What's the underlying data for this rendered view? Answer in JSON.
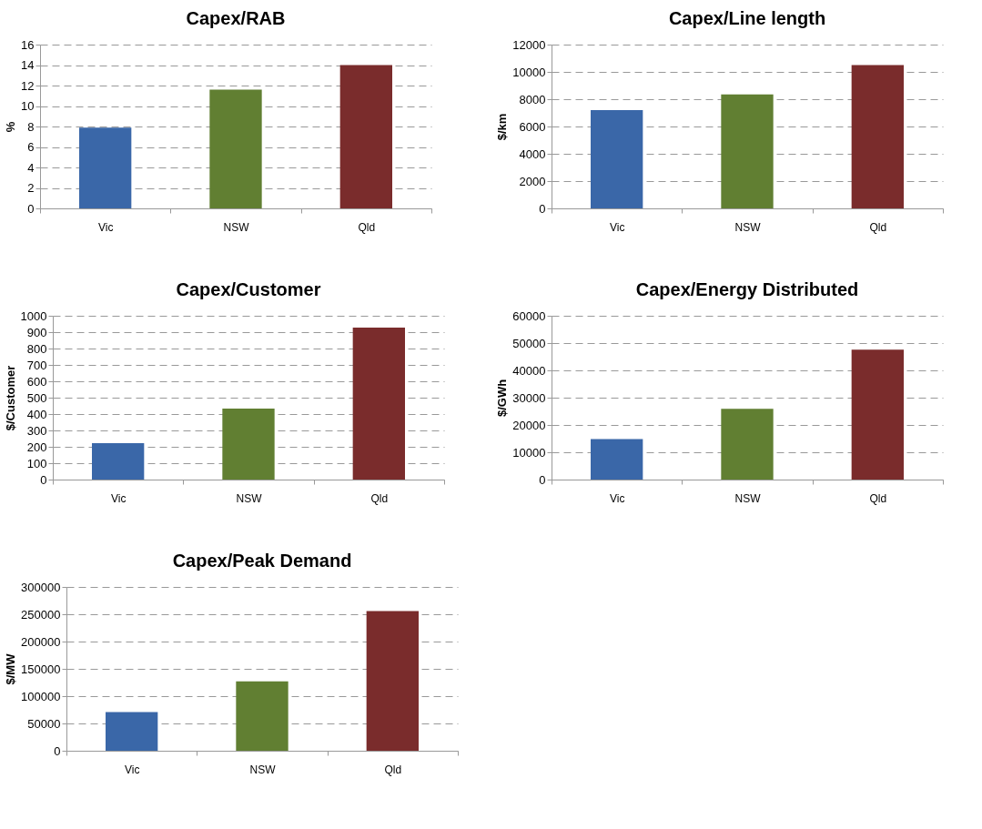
{
  "chart_data": [
    {
      "type": "bar",
      "title": "Capex/RAB",
      "ylabel": "%",
      "categories": [
        "Vic",
        "NSW",
        "Qld"
      ],
      "values": [
        7.9,
        11.6,
        14.0
      ],
      "colors": [
        "#3a67a8",
        "#617f32",
        "#7a2c2c"
      ],
      "ylim": [
        0,
        16
      ],
      "yticks": [
        0,
        2,
        4,
        6,
        8,
        10,
        12,
        14,
        16
      ],
      "grid": "y"
    },
    {
      "type": "bar",
      "title": "Capex/Line length",
      "ylabel": "$/km",
      "categories": [
        "Vic",
        "NSW",
        "Qld"
      ],
      "values": [
        7200,
        8350,
        10500
      ],
      "colors": [
        "#3a67a8",
        "#617f32",
        "#7a2c2c"
      ],
      "ylim": [
        0,
        12000
      ],
      "yticks": [
        0,
        2000,
        4000,
        6000,
        8000,
        10000,
        12000
      ],
      "grid": "y"
    },
    {
      "type": "bar",
      "title": "Capex/Customer",
      "ylabel": "$/Customer",
      "categories": [
        "Vic",
        "NSW",
        "Qld"
      ],
      "values": [
        222,
        433,
        928
      ],
      "colors": [
        "#3a67a8",
        "#617f32",
        "#7a2c2c"
      ],
      "ylim": [
        0,
        1000
      ],
      "yticks": [
        0,
        100,
        200,
        300,
        400,
        500,
        600,
        700,
        800,
        900,
        1000
      ],
      "grid": "y"
    },
    {
      "type": "bar",
      "title": "Capex/Energy Distributed",
      "ylabel": "$/GWh",
      "categories": [
        "Vic",
        "NSW",
        "Qld"
      ],
      "values": [
        14800,
        25900,
        47600
      ],
      "colors": [
        "#3a67a8",
        "#617f32",
        "#7a2c2c"
      ],
      "ylim": [
        0,
        60000
      ],
      "yticks": [
        0,
        10000,
        20000,
        30000,
        40000,
        50000,
        60000
      ],
      "grid": "y"
    },
    {
      "type": "bar",
      "title": "Capex/Peak Demand",
      "ylabel": "$/MW",
      "categories": [
        "Vic",
        "NSW",
        "Qld"
      ],
      "values": [
        71000,
        127000,
        256000
      ],
      "colors": [
        "#3a67a8",
        "#617f32",
        "#7a2c2c"
      ],
      "ylim": [
        0,
        300000
      ],
      "yticks": [
        0,
        50000,
        100000,
        150000,
        200000,
        250000,
        300000
      ],
      "grid": "y"
    }
  ]
}
